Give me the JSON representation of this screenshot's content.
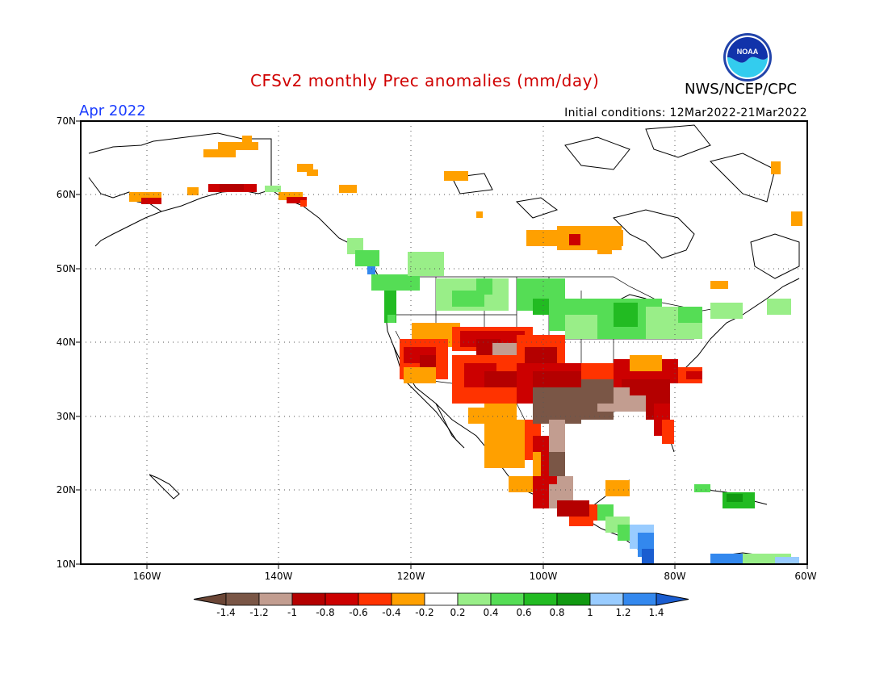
{
  "header": {
    "title": "CFSv2 monthly Prec anomalies (mm/day)",
    "agency": "NWS/NCEP/CPC",
    "logo_text": "NOAA",
    "month": "Apr 2022",
    "initial_conditions": "Initial conditions: 12Mar2022-21Mar2022"
  },
  "map": {
    "lat_labels": [
      "70N",
      "60N",
      "50N",
      "40N",
      "30N",
      "20N",
      "10N"
    ],
    "lon_labels": [
      "160W",
      "140W",
      "120W",
      "100W",
      "80W",
      "60W"
    ]
  },
  "colorbar": {
    "labels": [
      "-1.4",
      "-1.2",
      "-1",
      "-0.8",
      "-0.6",
      "-0.4",
      "-0.2",
      "0.2",
      "0.4",
      "0.6",
      "0.8",
      "1",
      "1.2",
      "1.4"
    ],
    "colors": {
      "lt_-1.4": "#6b4636",
      "-1.4_-1.2": "#7a5646",
      "-1.2_-1": "#c29d90",
      "-1_-0.8": "#b40000",
      "-0.8_-0.6": "#cc0000",
      "-0.6_-0.4": "#ff3300",
      "-0.4_-0.2": "#ffa000",
      "-0.2_0.2": "#ffffff",
      "0.2_0.4": "#99ee88",
      "0.4_0.6": "#55dd55",
      "0.6_0.8": "#22bb22",
      "0.8_1": "#119911",
      "1_1.2": "#99ccff",
      "1.2_1.4": "#3388ee",
      "gt_1.4": "#1a5dd0"
    }
  }
}
